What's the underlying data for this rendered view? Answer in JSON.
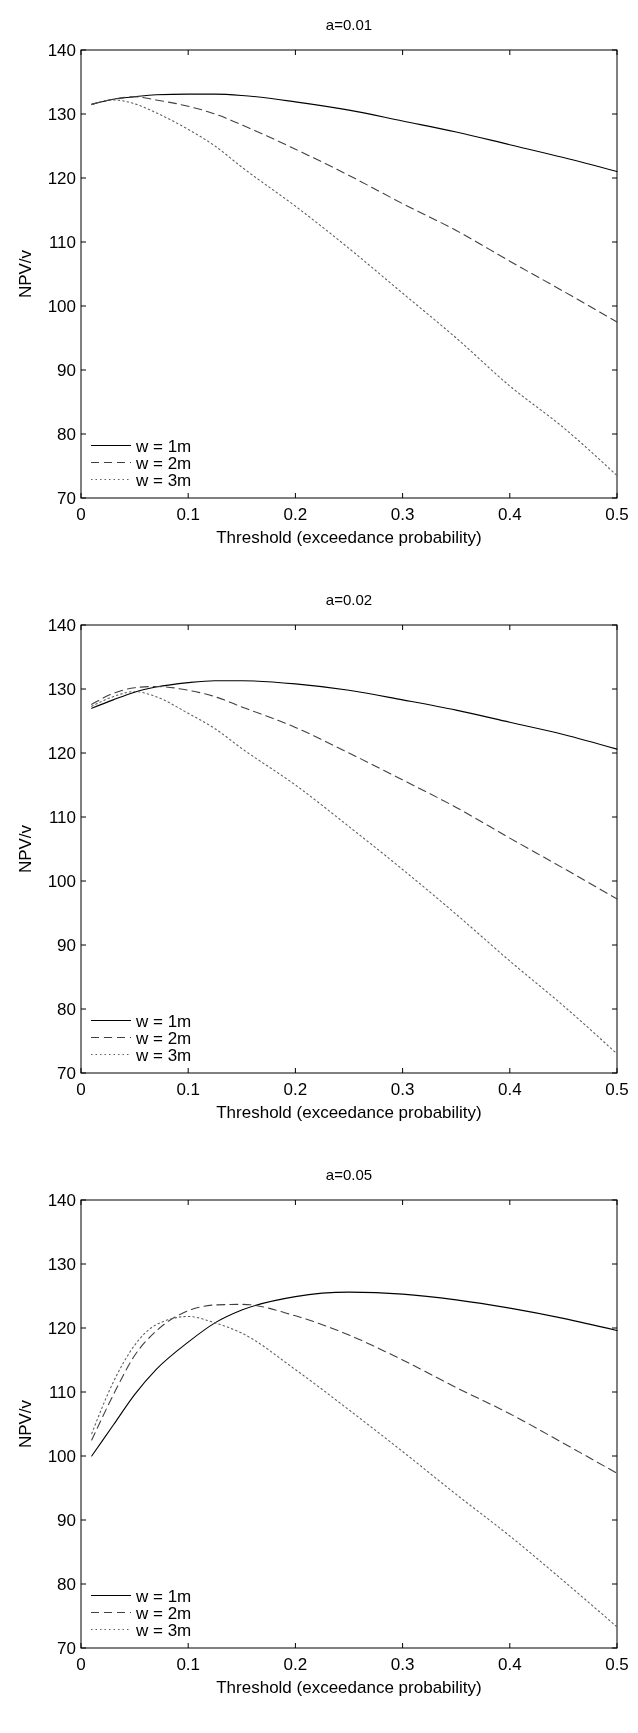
{
  "chart_data": [
    {
      "type": "line",
      "title": "a=0.01",
      "xlabel": "Threshold (exceedance probability)",
      "ylabel": "NPV/v",
      "xlim": [
        0,
        0.5
      ],
      "xticks": [
        0,
        0.1,
        0.2,
        0.3,
        0.4,
        0.5
      ],
      "ylim": [
        70,
        140
      ],
      "yticks": [
        70,
        80,
        90,
        100,
        110,
        120,
        130,
        140
      ],
      "legend": "bottom left",
      "grid": false,
      "x": [
        0.01,
        0.03,
        0.05,
        0.07,
        0.1,
        0.125,
        0.15,
        0.2,
        0.25,
        0.3,
        0.35,
        0.4,
        0.45,
        0.5
      ],
      "series": [
        {
          "name": "w = 1m",
          "color": "#000000",
          "line_style": "solid",
          "values": [
            131.5,
            132.3,
            132.7,
            133.0,
            133.1,
            133.1,
            132.9,
            131.9,
            130.6,
            128.9,
            127.2,
            125.2,
            123.2,
            121.0
          ]
        },
        {
          "name": "w = 2m",
          "color": "#404040",
          "line_style": "dashed",
          "values": [
            131.5,
            132.3,
            132.7,
            132.2,
            131.2,
            130.0,
            128.3,
            124.5,
            120.4,
            116.0,
            111.8,
            107.0,
            102.3,
            97.5
          ]
        },
        {
          "name": "w = 3m",
          "color": "#606060",
          "line_style": "dotted",
          "values": [
            131.5,
            132.2,
            131.6,
            130.2,
            127.6,
            125.0,
            121.7,
            115.6,
            109.0,
            102.0,
            95.0,
            87.5,
            81.0,
            73.5
          ]
        }
      ]
    },
    {
      "type": "line",
      "title": "a=0.02",
      "xlabel": "Threshold (exceedance probability)",
      "ylabel": "NPV/v",
      "xlim": [
        0,
        0.5
      ],
      "xticks": [
        0,
        0.1,
        0.2,
        0.3,
        0.4,
        0.5
      ],
      "ylim": [
        70,
        140
      ],
      "yticks": [
        70,
        80,
        90,
        100,
        110,
        120,
        130,
        140
      ],
      "legend": "bottom left",
      "grid": false,
      "x": [
        0.01,
        0.03,
        0.05,
        0.07,
        0.1,
        0.125,
        0.15,
        0.2,
        0.25,
        0.3,
        0.35,
        0.4,
        0.45,
        0.5
      ],
      "series": [
        {
          "name": "w = 1m",
          "color": "#000000",
          "line_style": "solid",
          "values": [
            127.0,
            128.3,
            129.5,
            130.3,
            131.0,
            131.3,
            131.3,
            130.8,
            129.8,
            128.3,
            126.7,
            124.8,
            122.9,
            120.6
          ]
        },
        {
          "name": "w = 2m",
          "color": "#404040",
          "line_style": "dashed",
          "values": [
            127.6,
            129.3,
            130.2,
            130.4,
            129.8,
            128.8,
            127.2,
            124.0,
            120.0,
            115.8,
            111.5,
            106.7,
            102.0,
            97.2
          ]
        },
        {
          "name": "w = 3m",
          "color": "#606060",
          "line_style": "dotted",
          "values": [
            127.3,
            128.8,
            129.6,
            128.8,
            126.2,
            123.8,
            120.7,
            115.0,
            108.5,
            101.8,
            94.8,
            87.5,
            80.5,
            73.0
          ]
        }
      ]
    },
    {
      "type": "line",
      "title": "a=0.05",
      "xlabel": "Threshold (exceedance probability)",
      "ylabel": "NPV/v",
      "xlim": [
        0,
        0.5
      ],
      "xticks": [
        0,
        0.1,
        0.2,
        0.3,
        0.4,
        0.5
      ],
      "ylim": [
        70,
        140
      ],
      "yticks": [
        70,
        80,
        90,
        100,
        110,
        120,
        130,
        140
      ],
      "legend": "bottom left",
      "grid": false,
      "x": [
        0.01,
        0.03,
        0.05,
        0.07,
        0.1,
        0.125,
        0.15,
        0.2,
        0.25,
        0.3,
        0.35,
        0.4,
        0.45,
        0.5
      ],
      "series": [
        {
          "name": "w = 1m",
          "color": "#000000",
          "line_style": "solid",
          "values": [
            100.0,
            104.8,
            109.6,
            113.5,
            117.8,
            120.8,
            122.8,
            124.9,
            125.6,
            125.3,
            124.4,
            123.1,
            121.5,
            119.6
          ]
        },
        {
          "name": "w = 2m",
          "color": "#404040",
          "line_style": "dashed",
          "values": [
            102.5,
            109.5,
            115.7,
            119.5,
            122.7,
            123.6,
            123.7,
            121.9,
            118.9,
            115.0,
            110.7,
            106.6,
            102.0,
            97.3
          ]
        },
        {
          "name": "w = 3m",
          "color": "#606060",
          "line_style": "dotted",
          "values": [
            103.5,
            111.5,
            117.3,
            120.5,
            121.8,
            120.8,
            119.2,
            113.5,
            107.2,
            100.7,
            94.0,
            87.5,
            80.5,
            73.3
          ]
        }
      ]
    }
  ]
}
